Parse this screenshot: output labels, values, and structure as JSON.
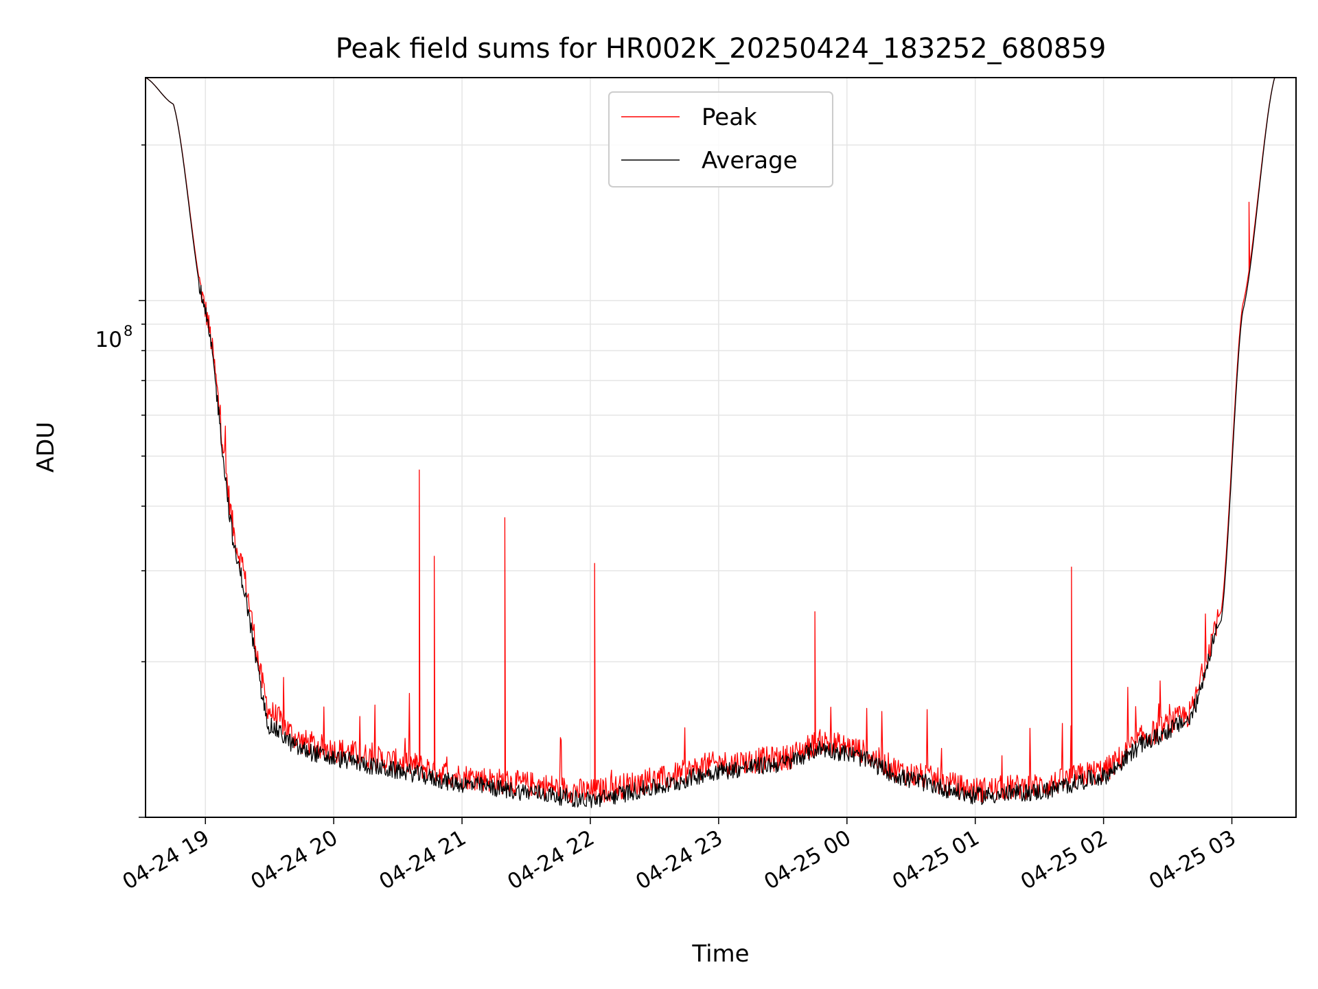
{
  "chart_data": {
    "type": "line",
    "title": "Peak field sums for HR002K_20250424_183252_680859",
    "xlabel": "Time",
    "ylabel": "ADU",
    "y_scale": "log",
    "y_major_tick_label": {
      "base": "10",
      "exp": "8",
      "value": 100000000
    },
    "ylim": [
      10000000,
      270000000
    ],
    "x_range_hours": [
      "04-24 18:32",
      "04-25 03:30"
    ],
    "x_ticks": [
      "04-24 19",
      "04-24 20",
      "04-24 21",
      "04-24 22",
      "04-24 23",
      "04-25 00",
      "04-25 01",
      "04-25 02",
      "04-25 03"
    ],
    "grid": true,
    "legend_position": "upper center",
    "series": [
      {
        "name": "Peak",
        "color": "#ff0000",
        "x_hours_labels": [
          "18:32",
          "18:45",
          "19:00",
          "19:15",
          "19:30",
          "19:45",
          "20:00",
          "20:30",
          "21:00",
          "21:30",
          "22:00",
          "22:30",
          "23:00",
          "23:30",
          "23:48",
          "00:00",
          "00:30",
          "01:00",
          "01:30",
          "02:00",
          "02:20",
          "02:40",
          "02:55",
          "03:05",
          "03:20",
          "03:30"
        ],
        "values": [
          270000000,
          240000000,
          96000000,
          33000000,
          16000000,
          14000000,
          13500000,
          12800000,
          12000000,
          11600000,
          11200000,
          11800000,
          12700000,
          13000000,
          14000000,
          13700000,
          12100000,
          11300000,
          11500000,
          12300000,
          14400000,
          15800000,
          25000000,
          98000000,
          270000000,
          270000000
        ],
        "spikes": [
          {
            "time": "20:40",
            "value": 47000000
          },
          {
            "time": "21:20",
            "value": 38000000
          },
          {
            "time": "22:02",
            "value": 31000000
          },
          {
            "time": "20:47",
            "value": 32000000
          },
          {
            "time": "01:45",
            "value": 30500000
          },
          {
            "time": "23:45",
            "value": 25000000
          },
          {
            "time": "03:08",
            "value": 155000000
          }
        ]
      },
      {
        "name": "Average",
        "color": "#000000",
        "x_hours_labels": [
          "18:32",
          "18:45",
          "19:00",
          "19:15",
          "19:30",
          "19:45",
          "20:00",
          "20:30",
          "21:00",
          "21:30",
          "22:00",
          "22:30",
          "23:00",
          "23:30",
          "23:48",
          "00:00",
          "00:30",
          "01:00",
          "01:30",
          "02:00",
          "02:20",
          "02:40",
          "02:55",
          "03:05",
          "03:20",
          "03:30"
        ],
        "values": [
          270000000,
          240000000,
          94000000,
          31000000,
          15000000,
          13500000,
          13000000,
          12300000,
          11600000,
          11200000,
          10800000,
          11400000,
          12300000,
          12700000,
          13600000,
          13300000,
          11800000,
          11000000,
          11200000,
          12000000,
          14000000,
          15400000,
          24000000,
          95000000,
          270000000,
          270000000
        ]
      }
    ]
  }
}
